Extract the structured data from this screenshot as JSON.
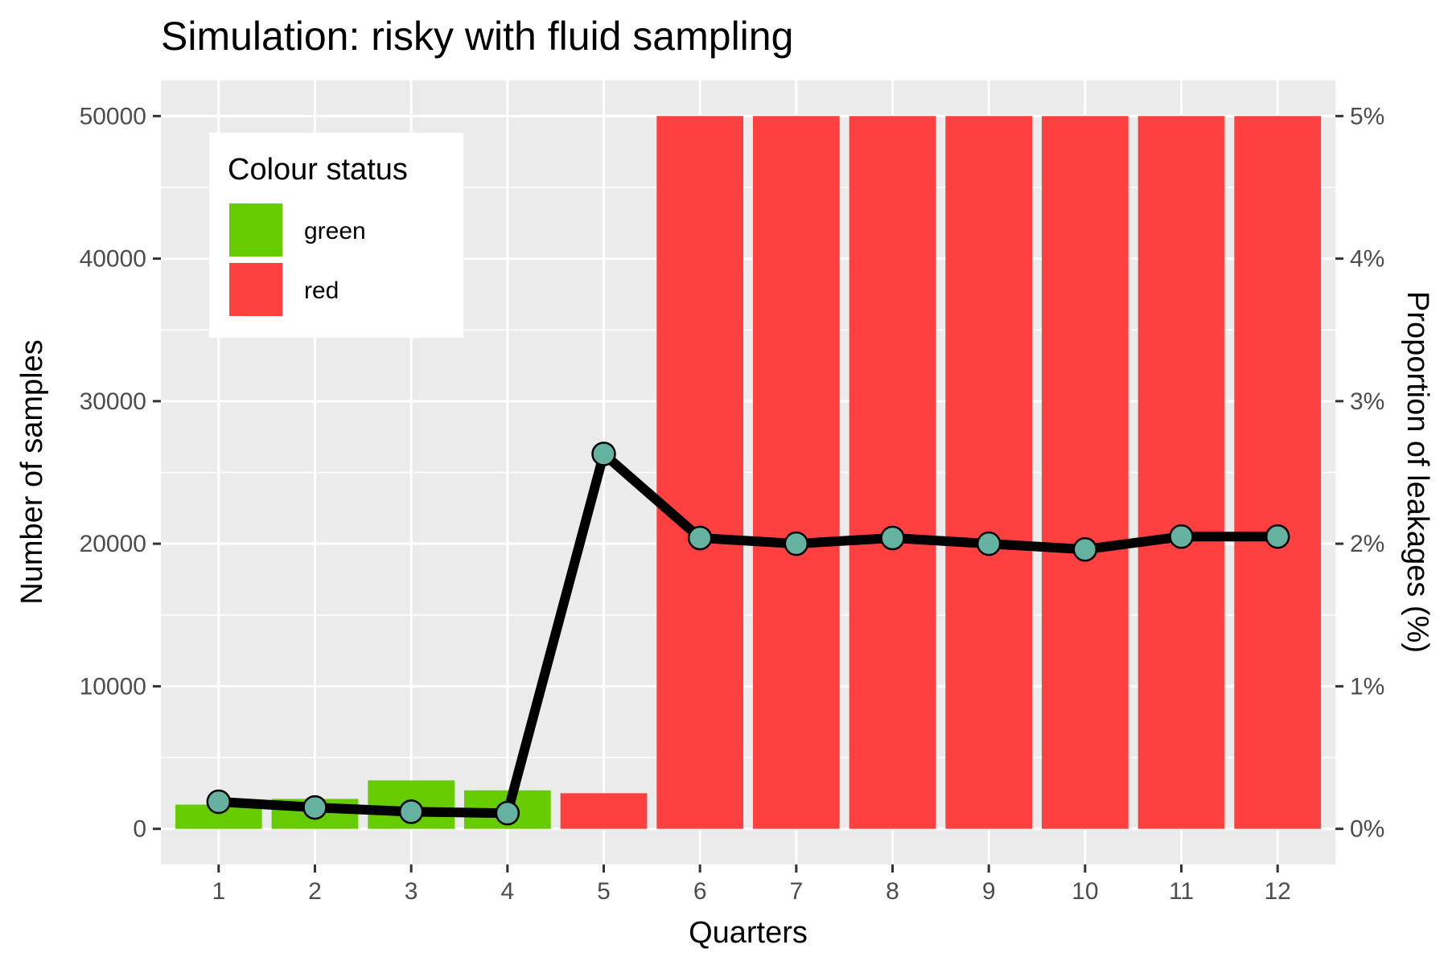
{
  "chart_data": {
    "type": "bar",
    "title": "Simulation: risky with fluid sampling",
    "xlabel": "Quarters",
    "ylabel": "Number of samples",
    "y2label": "Proportion of leakages (%)",
    "categories": [
      "1",
      "2",
      "3",
      "4",
      "5",
      "6",
      "7",
      "8",
      "9",
      "10",
      "11",
      "12"
    ],
    "ylim": [
      -2500,
      52500
    ],
    "yticks": [
      0,
      10000,
      20000,
      30000,
      40000,
      50000
    ],
    "y2lim": [
      -0.25,
      5.25
    ],
    "y2ticks": [
      0,
      1,
      2,
      3,
      4,
      5
    ],
    "y2tick_labels": [
      "0%",
      "1%",
      "2%",
      "3%",
      "4%",
      "5%"
    ],
    "grid": true,
    "legend": {
      "title": "Colour status",
      "placement": "top-left",
      "entries": [
        {
          "label": "green",
          "color": "#66cc00"
        },
        {
          "label": "red",
          "color": "#ff4040"
        }
      ]
    },
    "series": [
      {
        "type": "bar",
        "axis": "left",
        "values": [
          1700,
          2100,
          3400,
          2700,
          2500,
          50000,
          50000,
          50000,
          50000,
          50000,
          50000,
          50000
        ],
        "status": [
          "green",
          "green",
          "green",
          "green",
          "red",
          "red",
          "red",
          "red",
          "red",
          "red",
          "red",
          "red"
        ]
      },
      {
        "type": "line",
        "axis": "right",
        "values": [
          0.19,
          0.15,
          0.12,
          0.11,
          2.63,
          2.04,
          2.0,
          2.04,
          2.0,
          1.96,
          2.05,
          2.05
        ],
        "line_color": "#000000",
        "marker_color": "#66b2a0"
      }
    ]
  }
}
